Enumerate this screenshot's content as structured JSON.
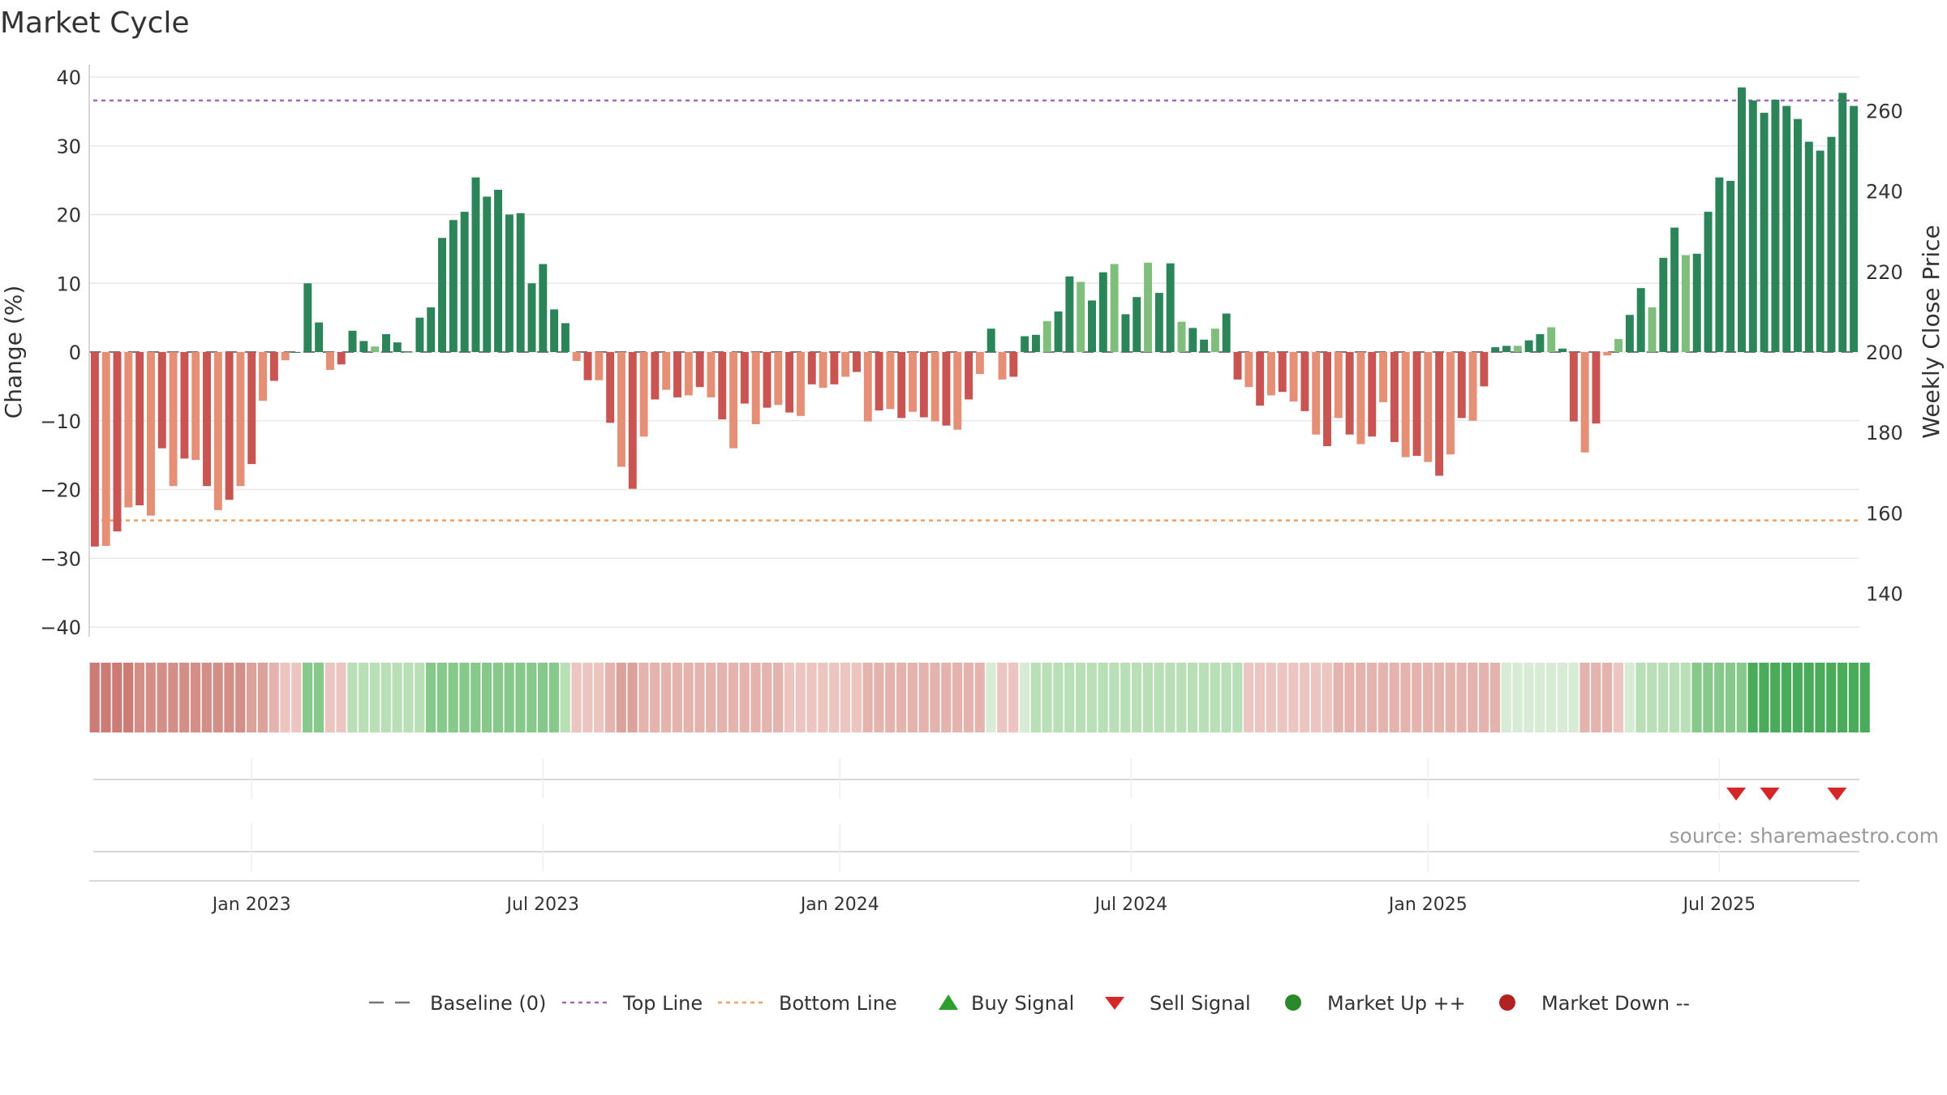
{
  "title": "Market Cycle",
  "source": "source: sharemaestro.com",
  "chart_data": {
    "type": "bar",
    "title": "Market Cycle",
    "y_left_label": "Change (%)",
    "y_right_label": "Weekly Close Price",
    "y_left_ticks": [
      "40",
      "30",
      "20",
      "10",
      "0",
      "−10",
      "−20",
      "−30",
      "−40"
    ],
    "y_left_tick_values": [
      40,
      30,
      20,
      10,
      0,
      -10,
      -20,
      -30,
      -40
    ],
    "y_left_range": [
      -40,
      40
    ],
    "y_right_ticks": [
      "260",
      "240",
      "220",
      "200",
      "180",
      "160",
      "140"
    ],
    "y_right_tick_values": [
      260,
      240,
      220,
      200,
      180,
      160,
      140
    ],
    "x_ticks": [
      "Jan 2023",
      "Jul 2023",
      "Jan 2024",
      "Jul 2024",
      "Jan 2025",
      "Jul 2025"
    ],
    "x_tick_week_index": [
      14,
      40,
      66.5,
      92.5,
      119,
      145
    ],
    "top_line_value": 36.6,
    "bottom_line_value": -24.5,
    "values": [
      -28.3,
      -28.2,
      -26.1,
      -22.6,
      -22.3,
      -23.8,
      -14,
      -19.5,
      -15.5,
      -15.7,
      -19.5,
      -23,
      -21.5,
      -19.5,
      -16.3,
      -7.1,
      -4.2,
      -1.2,
      0,
      10,
      4.3,
      -2.6,
      -1.8,
      3.1,
      1.6,
      0.8,
      2.6,
      1.4,
      0,
      5,
      6.5,
      16.6,
      19.2,
      20.4,
      25.4,
      22.6,
      23.6,
      20,
      20.2,
      10,
      12.8,
      6.2,
      4.2,
      -1.3,
      -4.1,
      -4.1,
      -10.3,
      -16.7,
      -19.9,
      -12.3,
      -6.9,
      -5.5,
      -6.6,
      -6.3,
      -5.1,
      -6.6,
      -9.8,
      -14,
      -7.5,
      -10.5,
      -8.1,
      -7.7,
      -8.8,
      -9.3,
      -4.7,
      -5.2,
      -4.7,
      -3.6,
      -2.9,
      -10.1,
      -8.5,
      -8.3,
      -9.6,
      -8.7,
      -9.5,
      -10.1,
      -10.7,
      -11.3,
      -6.9,
      -3.2,
      3.4,
      -4,
      -3.6,
      2.3,
      2.5,
      4.5,
      5.9,
      11,
      10.2,
      7.5,
      11.6,
      12.8,
      5.5,
      8,
      13,
      8.6,
      12.9,
      4.4,
      3.5,
      1.8,
      3.4,
      5.6,
      -4,
      -5.1,
      -7.8,
      -6.3,
      -5.8,
      -7.2,
      -8.6,
      -12,
      -13.7,
      -9.6,
      -12,
      -13.4,
      -12.3,
      -7.3,
      -13.1,
      -15.3,
      -15.1,
      -16,
      -18,
      -14.9,
      -9.6,
      -10,
      -5,
      0.7,
      0.9,
      0.9,
      1.7,
      2.6,
      3.6,
      0.5,
      -10.1,
      -14.6,
      -10.4,
      -0.5,
      1.9,
      5.4,
      9.3,
      6.5,
      13.7,
      18.1,
      14.1,
      14.3,
      20.4,
      25.4,
      24.9,
      38.5,
      36.6,
      34.8,
      36.7,
      35.8,
      33.9,
      30.6,
      29.3,
      31.3,
      37.7,
      35.8
    ],
    "strength_levels": [
      -5,
      -5,
      -5,
      -5,
      -4,
      -4,
      -4,
      -4,
      -4,
      -4,
      -4,
      -4,
      -4,
      -4,
      -3,
      -3,
      -2,
      -1,
      -1,
      3,
      3,
      -1,
      -1,
      2,
      2,
      2,
      2,
      2,
      2,
      2,
      3,
      3,
      3,
      3,
      3,
      3,
      3,
      3,
      3,
      3,
      3,
      3,
      2,
      -1,
      -1,
      -1,
      -2,
      -3,
      -3,
      -2,
      -2,
      -2,
      -2,
      -2,
      -2,
      -2,
      -2,
      -2,
      -2,
      -2,
      -2,
      -2,
      -1,
      -1,
      -1,
      -1,
      -1,
      -1,
      -1,
      -2,
      -2,
      -2,
      -2,
      -2,
      -2,
      -2,
      -2,
      -2,
      -2,
      -2,
      1,
      -1,
      -1,
      1,
      2,
      2,
      2,
      2,
      2,
      2,
      2,
      2,
      2,
      2,
      2,
      2,
      2,
      2,
      2,
      2,
      2,
      2,
      2,
      -1,
      -1,
      -1,
      -1,
      -1,
      -1,
      -1,
      -1,
      -2,
      -2,
      -2,
      -2,
      -2,
      -2,
      -2,
      -2,
      -2,
      -2,
      -2,
      -2,
      -2,
      -2,
      -2,
      1,
      1,
      1,
      1,
      1,
      1,
      1,
      -2,
      -2,
      -2,
      -1,
      1,
      2,
      2,
      2,
      2,
      2,
      3,
      3,
      3,
      3,
      3,
      5,
      5,
      5,
      5,
      5,
      5,
      5,
      5,
      5,
      5,
      5
    ],
    "sell_signal_week_index": [
      146.5,
      149.5,
      155.5
    ],
    "legend": [
      "Baseline (0)",
      "Top Line",
      "Bottom Line",
      "Buy Signal",
      "Sell Signal",
      "Market Up ++",
      "Market Down --"
    ]
  },
  "colors": {
    "neg_strong": "#c95552",
    "neg_light": "#e58f77",
    "pos_strong": "#2c8558",
    "pos_light": "#7fbf7b",
    "top_line": "#a266c7",
    "bottom_line": "#f0a060",
    "buy_signal": "#2ca02c",
    "sell_signal": "#d62728",
    "market_up": "#2a8a2a",
    "market_down": "#b22222",
    "baseline": "#777777",
    "grid": "#e8e8e8"
  }
}
